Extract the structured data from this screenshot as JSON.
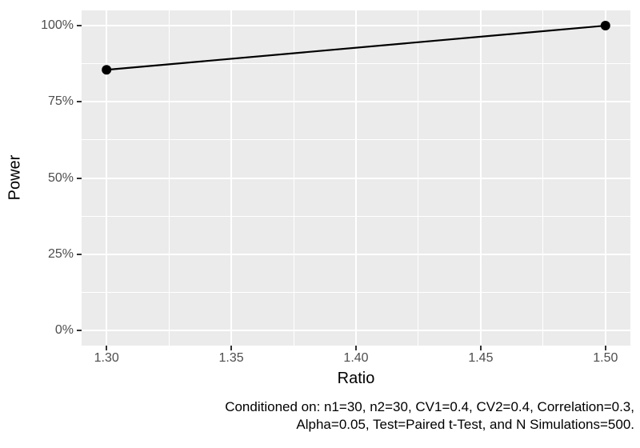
{
  "chart_data": {
    "type": "line",
    "title": "",
    "xlabel": "Ratio",
    "ylabel": "Power",
    "x": [
      1.3,
      1.5
    ],
    "series": [
      {
        "name": "Power",
        "values_percent": [
          85.5,
          100.0
        ]
      }
    ],
    "x_axis": {
      "ticks": [
        1.3,
        1.35,
        1.4,
        1.45,
        1.5
      ],
      "tick_labels": [
        "1.30",
        "1.35",
        "1.40",
        "1.45",
        "1.50"
      ],
      "minor_ticks": [
        1.325,
        1.375,
        1.425,
        1.475
      ],
      "range": [
        1.29,
        1.51
      ]
    },
    "y_axis": {
      "ticks": [
        0,
        25,
        50,
        75,
        100
      ],
      "tick_labels": [
        "0%",
        "25%",
        "50%",
        "75%",
        "100%"
      ],
      "minor_ticks": [
        12.5,
        37.5,
        62.5,
        87.5
      ],
      "range_percent": [
        -5,
        105
      ]
    },
    "grid": "major-and-minor",
    "legend_position": "none",
    "caption_lines": [
      "Conditioned on: n1=30, n2=30, CV1=0.4, CV2=0.4, Correlation=0.3,",
      "Alpha=0.05, Test=Paired t-Test, and N Simulations=500."
    ]
  },
  "style": {
    "figure_background": "#FFFFFF",
    "panel_background": "#EBEBEB",
    "grid_color": "#FFFFFF",
    "line_color": "#000000",
    "point_color": "#000000",
    "tick_mark_color": "#333333",
    "tick_label_color": "#4D4D4D",
    "axis_title_color": "#000000",
    "caption_color": "#000000"
  }
}
